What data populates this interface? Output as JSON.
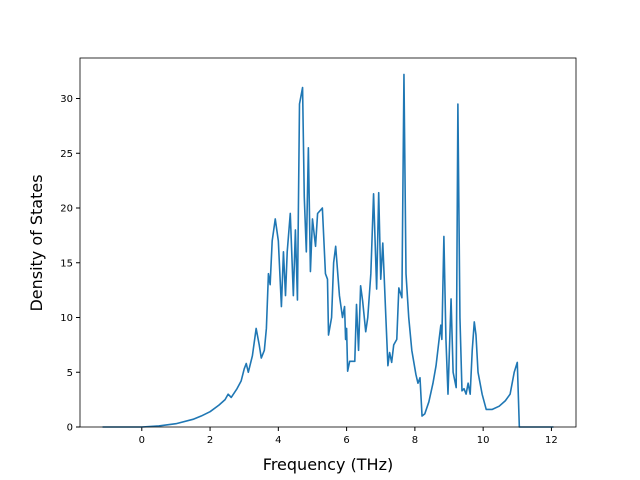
{
  "chart_data": {
    "type": "line",
    "x_label": "Frequency (THz)",
    "y_label": "Density of States",
    "x": [
      -1.15,
      0,
      0.5,
      1,
      1.5,
      1.74,
      2,
      2.26,
      2.44,
      2.53,
      2.62,
      2.79,
      2.91,
      3,
      3.06,
      3.12,
      3.24,
      3.35,
      3.44,
      3.5,
      3.59,
      3.65,
      3.71,
      3.76,
      3.82,
      3.91,
      4,
      4.09,
      4.15,
      4.21,
      4.26,
      4.35,
      4.44,
      4.5,
      4.56,
      4.62,
      4.71,
      4.76,
      4.82,
      4.88,
      4.94,
      5,
      5.09,
      5.15,
      5.29,
      5.38,
      5.44,
      5.47,
      5.56,
      5.62,
      5.68,
      5.79,
      5.88,
      5.94,
      5.97,
      6.0,
      6.03,
      6.09,
      6.24,
      6.29,
      6.35,
      6.41,
      6.47,
      6.56,
      6.62,
      6.71,
      6.79,
      6.88,
      6.94,
      7,
      7.06,
      7.15,
      7.21,
      7.26,
      7.32,
      7.38,
      7.47,
      7.53,
      7.62,
      7.68,
      7.74,
      7.82,
      7.91,
      8.03,
      8.09,
      8.15,
      8.21,
      8.29,
      8.41,
      8.53,
      8.62,
      8.71,
      8.76,
      8.79,
      8.85,
      8.91,
      8.97,
      9.06,
      9.12,
      9.21,
      9.26,
      9.32,
      9.38,
      9.44,
      9.5,
      9.56,
      9.62,
      9.68,
      9.74,
      9.79,
      9.85,
      9.97,
      10.09,
      10.26,
      10.47,
      10.65,
      10.79,
      10.91,
      11.0,
      11.06,
      12.06
    ],
    "series": [
      {
        "color": "#1f77b4",
        "values": [
          0,
          0,
          0.1,
          0.3,
          0.7,
          1.0,
          1.4,
          2.0,
          2.5,
          3.0,
          2.7,
          3.5,
          4.2,
          5.3,
          5.8,
          5.0,
          6.5,
          9.0,
          7.5,
          6.3,
          7.0,
          9.0,
          14.0,
          13.0,
          17.0,
          19.0,
          17.0,
          11.0,
          16.0,
          12.0,
          16.0,
          19.5,
          12.0,
          18.0,
          11.6,
          29.5,
          31.0,
          21.0,
          16.0,
          25.5,
          14.2,
          19.0,
          16.5,
          19.5,
          20.0,
          14.0,
          13.5,
          8.4,
          10.0,
          15.0,
          16.5,
          12.0,
          10.0,
          11.0,
          8.0,
          9.0,
          5.1,
          6.0,
          6.0,
          11.2,
          7.0,
          12.9,
          11.5,
          8.7,
          10.0,
          14.0,
          21.3,
          12.6,
          21.4,
          13.5,
          16.8,
          10.0,
          5.6,
          6.8,
          5.9,
          7.5,
          8.0,
          12.7,
          11.8,
          32.2,
          14.0,
          10.0,
          7.0,
          4.8,
          4.0,
          4.5,
          1.0,
          1.2,
          2.3,
          4.0,
          5.6,
          8.0,
          9.3,
          8.0,
          17.4,
          8.0,
          3.0,
          11.7,
          5.0,
          3.6,
          29.5,
          10.0,
          3.3,
          3.5,
          3.0,
          4.0,
          3.0,
          7.0,
          9.6,
          8.4,
          5.0,
          3.0,
          1.6,
          1.6,
          1.9,
          2.4,
          3.0,
          5.0,
          5.9,
          0,
          0
        ]
      }
    ],
    "xlim": [
      -1.81,
      12.72
    ],
    "xticks": [
      0,
      2,
      4,
      6,
      8,
      10,
      12
    ],
    "ylim": [
      0,
      33.7
    ],
    "yticks": [
      0,
      5,
      10,
      15,
      20,
      25,
      30
    ]
  }
}
